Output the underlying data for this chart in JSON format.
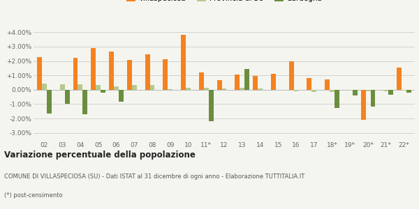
{
  "categories": [
    "02",
    "03",
    "04",
    "05",
    "06",
    "07",
    "08",
    "09",
    "10",
    "11*",
    "12",
    "13",
    "14",
    "15",
    "16",
    "17",
    "18*",
    "19*",
    "20*",
    "21*",
    "22*"
  ],
  "villaspeciosa": [
    2.28,
    0.0,
    2.22,
    2.88,
    2.68,
    2.08,
    2.44,
    2.1,
    3.82,
    1.22,
    0.68,
    1.08,
    0.96,
    1.12,
    2.0,
    0.8,
    0.7,
    0.0,
    -2.1,
    0.0,
    1.55
  ],
  "provincia_su": [
    0.42,
    0.38,
    0.38,
    0.35,
    0.22,
    0.35,
    0.33,
    0.04,
    0.12,
    0.12,
    0.1,
    0.12,
    0.1,
    0.0,
    -0.12,
    -0.15,
    -0.15,
    -0.05,
    -0.1,
    -0.1,
    -0.08
  ],
  "sardegna": [
    -1.68,
    -0.98,
    -1.72,
    -0.22,
    -0.82,
    0.0,
    0.0,
    0.0,
    0.0,
    -2.18,
    0.0,
    1.45,
    0.0,
    0.0,
    0.0,
    0.0,
    -1.28,
    -0.38,
    -1.18,
    -0.35,
    -0.22
  ],
  "orange_color": "#f5821e",
  "light_green_color": "#b5c98e",
  "dark_green_color": "#6b8e3e",
  "bg_color": "#f5f5f0",
  "grid_color": "#cccccc",
  "title_bold": "Variazione percentuale della popolazione",
  "subtitle": "COMUNE DI VILLASPECIOSA (SU) - Dati ISTAT al 31 dicembre di ogni anno - Elaborazione TUTTITALIA.IT",
  "footnote": "(*) post-censimento",
  "ylim": [
    -3.5,
    4.5
  ],
  "yticks": [
    -3.0,
    -2.0,
    -1.0,
    0.0,
    1.0,
    2.0,
    3.0,
    4.0
  ],
  "ytick_labels": [
    "-3.00%",
    "-2.00%",
    "-1.00%",
    "0.00%",
    "+1.00%",
    "+2.00%",
    "+3.00%",
    "+4.00%"
  ]
}
